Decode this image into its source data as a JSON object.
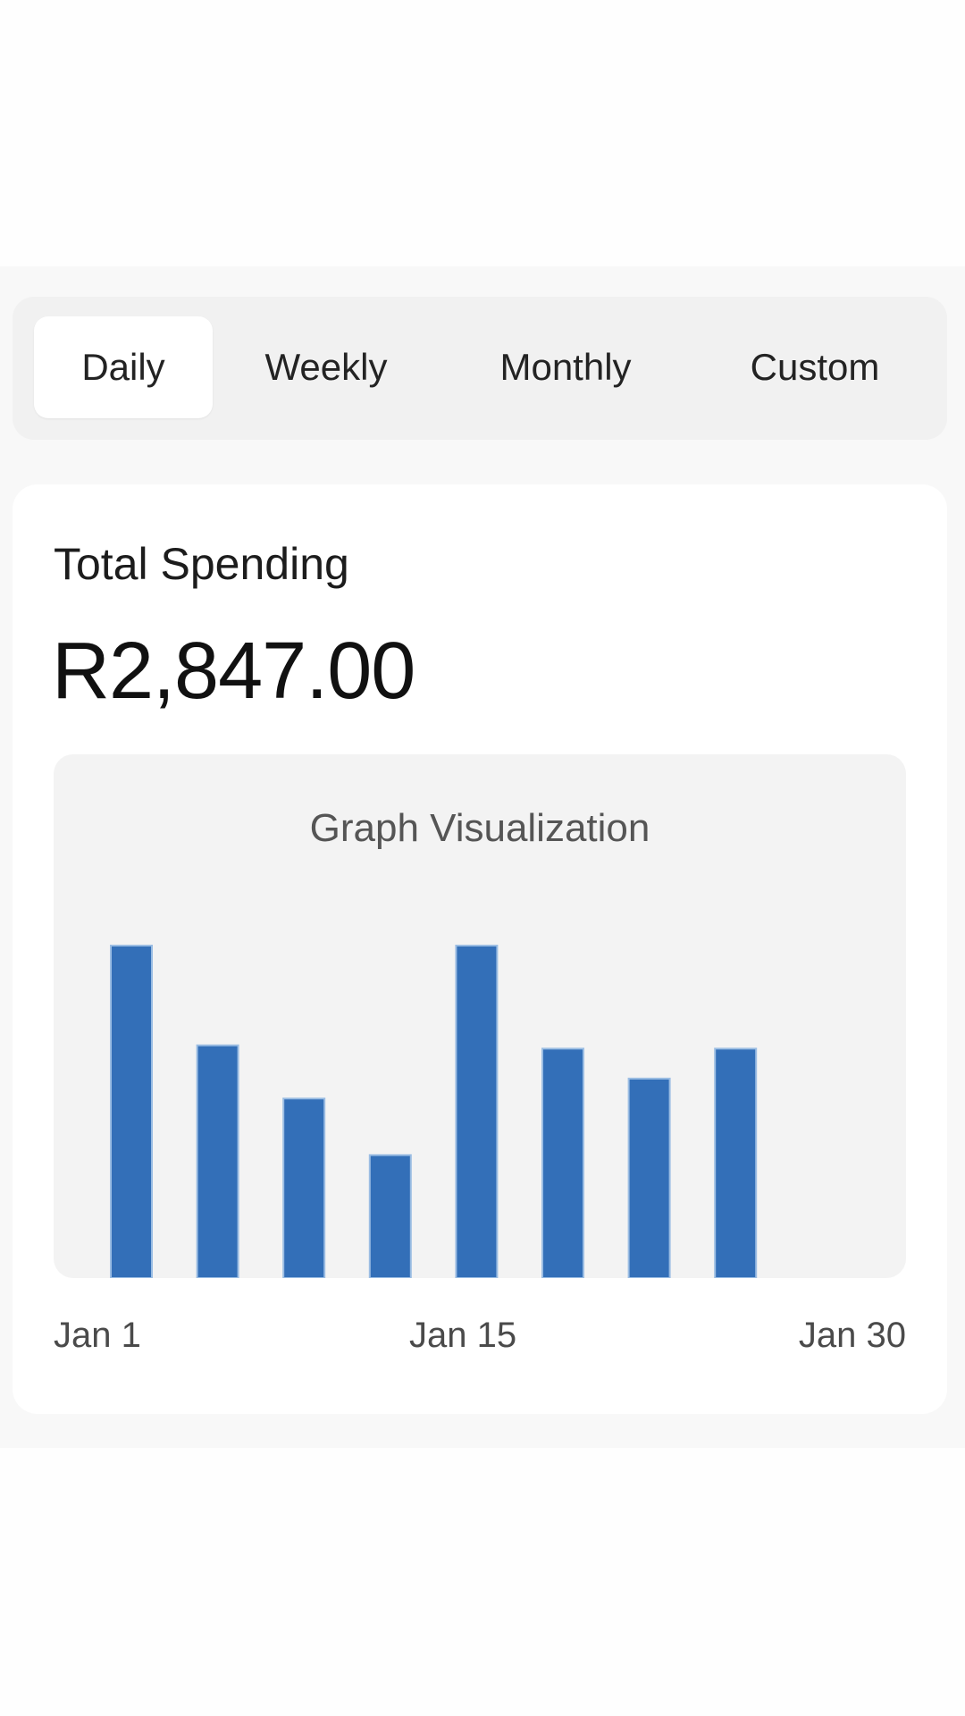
{
  "tabs": [
    {
      "label": "Daily",
      "active": true
    },
    {
      "label": "Weekly",
      "active": false
    },
    {
      "label": "Monthly",
      "active": false
    },
    {
      "label": "Custom",
      "active": false
    }
  ],
  "summary": {
    "title": "Total Spending",
    "amount": "R2,847.00"
  },
  "graph": {
    "placeholder_label": "Graph Visualization"
  },
  "x_labels": [
    "Jan 1",
    "Jan 15",
    "Jan 30"
  ],
  "colors": {
    "bar": "#336fb8",
    "bar_edge": "#9bbde3"
  },
  "chart_data": {
    "type": "bar",
    "values": [
      100,
      70,
      54,
      37,
      100,
      69,
      60,
      69
    ],
    "ylim": [
      0,
      100
    ],
    "grid": false,
    "x_tick_labels": [
      "Jan 1",
      "Jan 15",
      "Jan 30"
    ]
  }
}
